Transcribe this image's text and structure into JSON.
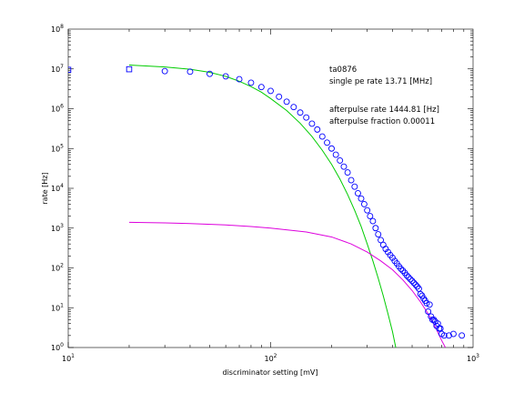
{
  "chart_data": {
    "type": "scatter",
    "title": "",
    "xlabel": "discriminator setting [mV]",
    "ylabel": "rate [Hz]",
    "x_scale": "log",
    "y_scale": "log",
    "xlim": [
      10,
      1000
    ],
    "ylim": [
      1,
      100000000
    ],
    "grid": false,
    "x_ticks": [
      {
        "base": "10",
        "exp": "1",
        "value": 10
      },
      {
        "base": "10",
        "exp": "2",
        "value": 100
      },
      {
        "base": "10",
        "exp": "3",
        "value": 1000
      }
    ],
    "y_ticks": [
      {
        "base": "10",
        "exp": "0",
        "value": 1
      },
      {
        "base": "10",
        "exp": "1",
        "value": 10
      },
      {
        "base": "10",
        "exp": "2",
        "value": 100
      },
      {
        "base": "10",
        "exp": "3",
        "value": 1000
      },
      {
        "base": "10",
        "exp": "4",
        "value": 10000
      },
      {
        "base": "10",
        "exp": "5",
        "value": 100000
      },
      {
        "base": "10",
        "exp": "6",
        "value": 1000000
      },
      {
        "base": "10",
        "exp": "7",
        "value": 10000000
      },
      {
        "base": "10",
        "exp": "8",
        "value": 100000000
      }
    ],
    "annotations": [
      "ta0876",
      "single pe rate 13.71 [MHz]",
      "afterpulse rate 1444.81 [Hz]",
      "afterpulse fraction 0.00011"
    ],
    "series": [
      {
        "type": "scatter",
        "marker": "square",
        "color": "#0000ff",
        "points": [
          [
            10,
            9500000
          ],
          [
            20,
            9800000
          ]
        ]
      },
      {
        "type": "scatter",
        "marker": "circle",
        "color": "#0000ff",
        "points": [
          [
            30,
            8800000
          ],
          [
            40,
            8500000
          ],
          [
            50,
            7500000
          ],
          [
            60,
            6500000
          ],
          [
            70,
            5500000
          ],
          [
            80,
            4500000
          ],
          [
            90,
            3500000
          ],
          [
            100,
            2800000
          ],
          [
            110,
            2000000
          ],
          [
            120,
            1500000
          ],
          [
            130,
            1100000
          ],
          [
            140,
            800000
          ],
          [
            150,
            600000
          ],
          [
            160,
            420000
          ],
          [
            170,
            300000
          ],
          [
            180,
            200000
          ],
          [
            190,
            140000
          ],
          [
            200,
            100000
          ],
          [
            210,
            70000
          ],
          [
            220,
            50000
          ],
          [
            230,
            35000
          ],
          [
            240,
            25000
          ],
          [
            250,
            16000
          ],
          [
            260,
            11000
          ],
          [
            270,
            7500
          ],
          [
            280,
            5500
          ],
          [
            290,
            4000
          ],
          [
            300,
            2800
          ],
          [
            310,
            2000
          ],
          [
            320,
            1500
          ],
          [
            330,
            1000
          ],
          [
            340,
            700
          ],
          [
            350,
            500
          ],
          [
            360,
            380
          ],
          [
            370,
            300
          ],
          [
            380,
            250
          ],
          [
            390,
            210
          ],
          [
            400,
            180
          ],
          [
            410,
            150
          ],
          [
            420,
            130
          ],
          [
            430,
            110
          ],
          [
            440,
            95
          ],
          [
            450,
            85
          ],
          [
            460,
            75
          ],
          [
            470,
            65
          ],
          [
            480,
            58
          ],
          [
            490,
            52
          ],
          [
            500,
            47
          ],
          [
            510,
            42
          ],
          [
            520,
            38
          ],
          [
            530,
            34
          ],
          [
            540,
            30
          ],
          [
            550,
            22
          ],
          [
            560,
            20
          ],
          [
            570,
            17
          ],
          [
            580,
            15
          ],
          [
            590,
            13
          ],
          [
            600,
            8
          ],
          [
            610,
            12
          ],
          [
            620,
            6
          ],
          [
            630,
            5
          ],
          [
            640,
            5
          ],
          [
            650,
            4.5
          ],
          [
            660,
            3.5
          ],
          [
            670,
            4
          ],
          [
            680,
            3
          ],
          [
            690,
            3
          ],
          [
            700,
            2.2
          ],
          [
            720,
            2
          ],
          [
            760,
            2
          ],
          [
            800,
            2.2
          ],
          [
            880,
            2
          ]
        ]
      },
      {
        "type": "line",
        "color": "#00cc00",
        "model": "single-pe",
        "points": [
          [
            20,
            12500000
          ],
          [
            30,
            11200000
          ],
          [
            40,
            9800000
          ],
          [
            50,
            8200000
          ],
          [
            60,
            6500000
          ],
          [
            70,
            4900000
          ],
          [
            80,
            3600000
          ],
          [
            90,
            2600000
          ],
          [
            100,
            1800000
          ],
          [
            120,
            900000
          ],
          [
            140,
            430000
          ],
          [
            160,
            200000
          ],
          [
            180,
            90000
          ],
          [
            200,
            40000
          ],
          [
            220,
            17000
          ],
          [
            240,
            7000
          ],
          [
            260,
            2800
          ],
          [
            280,
            1100
          ],
          [
            300,
            400
          ],
          [
            320,
            150
          ],
          [
            340,
            55
          ],
          [
            360,
            20
          ],
          [
            380,
            7
          ],
          [
            400,
            2.5
          ],
          [
            415,
            1
          ]
        ]
      },
      {
        "type": "line",
        "color": "#dd00dd",
        "model": "afterpulse",
        "points": [
          [
            20,
            1400
          ],
          [
            30,
            1350
          ],
          [
            40,
            1300
          ],
          [
            60,
            1200
          ],
          [
            80,
            1100
          ],
          [
            100,
            1000
          ],
          [
            150,
            800
          ],
          [
            200,
            600
          ],
          [
            250,
            400
          ],
          [
            300,
            250
          ],
          [
            350,
            150
          ],
          [
            400,
            90
          ],
          [
            450,
            50
          ],
          [
            500,
            27
          ],
          [
            550,
            14
          ],
          [
            600,
            7
          ],
          [
            650,
            3.3
          ],
          [
            700,
            1.5
          ],
          [
            730,
            1
          ]
        ]
      }
    ]
  }
}
